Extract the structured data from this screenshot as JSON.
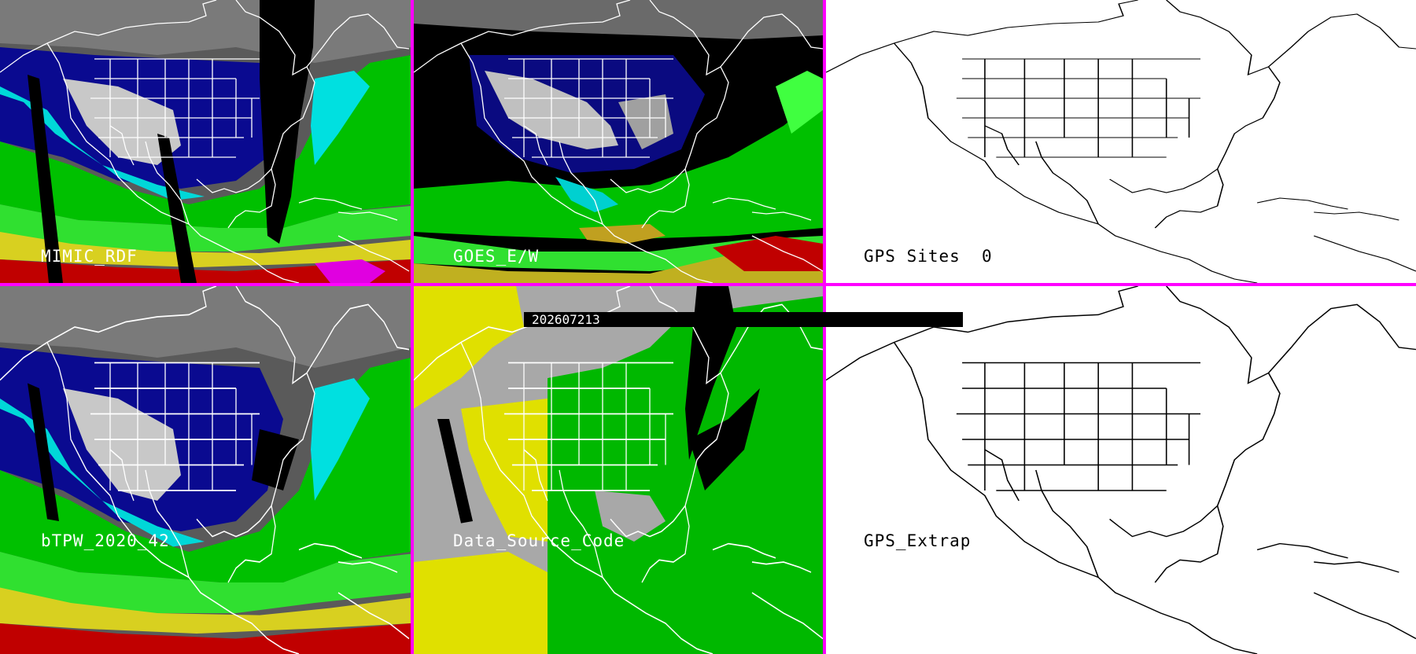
{
  "panels": {
    "mimic": {
      "label": "MIMIC_RDF"
    },
    "goes": {
      "label": "GOES_E/W"
    },
    "gps_sites": {
      "label": "GPS Sites",
      "count": "0"
    },
    "btpw": {
      "label": "bTPW_2020_42"
    },
    "source": {
      "label": "Data_Source_Code"
    },
    "gps_extrap": {
      "label": "GPS_Extrap"
    }
  },
  "timestamp": "202607213",
  "colors": {
    "divider": "#ff00ff",
    "tpw_scale": [
      "#202020",
      "#808080",
      "#d0d0d0",
      "#000080",
      "#1010d0",
      "#00e0e0",
      "#00c000",
      "#40ff40",
      "#d0d020",
      "#ffff00",
      "#c00000",
      "#ff00ff"
    ],
    "source_codes": [
      "#a8a8a8",
      "#e0e000",
      "#00b800",
      "#000000"
    ]
  },
  "icons": [
    "coastline-map",
    "state-borders"
  ]
}
